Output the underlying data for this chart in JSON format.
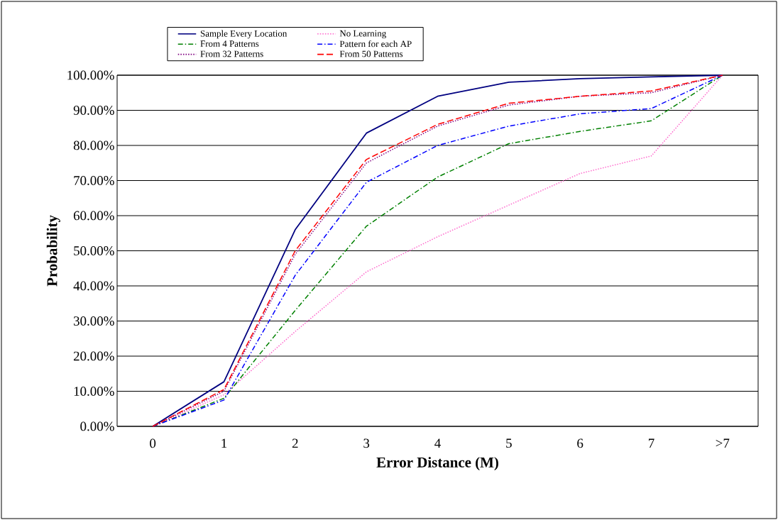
{
  "chart_data": {
    "type": "line",
    "xlabel": "Error Distance (M)",
    "ylabel": "Probability",
    "categories": [
      "0",
      "1",
      "2",
      "3",
      "4",
      "5",
      "6",
      "7",
      ">7"
    ],
    "ylim": [
      0,
      100
    ],
    "yticks": [
      {
        "value": 0,
        "label": "0.00%"
      },
      {
        "value": 10,
        "label": "10.00%"
      },
      {
        "value": 20,
        "label": "20.00%"
      },
      {
        "value": 30,
        "label": "30.00%"
      },
      {
        "value": 40,
        "label": "40.00%"
      },
      {
        "value": 50,
        "label": "50.00%"
      },
      {
        "value": 60,
        "label": "60.00%"
      },
      {
        "value": 70,
        "label": "70.00%"
      },
      {
        "value": 80,
        "label": "80.00%"
      },
      {
        "value": 90,
        "label": "90.00%"
      },
      {
        "value": 100,
        "label": "100.00%"
      }
    ],
    "grid": "y",
    "legend": "top",
    "marker": "none",
    "series": [
      {
        "name": "Sample Every Location",
        "color": "#000080",
        "line_style": "solid",
        "values": [
          0,
          12.7,
          56,
          83.5,
          94,
          98,
          99,
          99.5,
          100
        ]
      },
      {
        "name": "No Learning",
        "color": "#ff66cc",
        "line_style": "dotted",
        "values": [
          0,
          9,
          27,
          44,
          54,
          63,
          72,
          77,
          100
        ]
      },
      {
        "name": "From 4 Patterns",
        "color": "#008000",
        "line_style": "dashdot",
        "values": [
          0,
          8,
          33,
          57,
          71,
          80.5,
          84,
          87,
          100
        ]
      },
      {
        "name": "Pattern for each AP",
        "color": "#0000ff",
        "line_style": "dashdot",
        "values": [
          0,
          7.5,
          43,
          69.5,
          80,
          85.5,
          89,
          90.5,
          100
        ]
      },
      {
        "name": "From 32 Patterns",
        "color": "#800080",
        "line_style": "dotted",
        "values": [
          0,
          10,
          49,
          75,
          85.5,
          91.5,
          94,
          95,
          100
        ]
      },
      {
        "name": "From 50 Patterns",
        "color": "#ff0000",
        "line_style": "dashed",
        "values": [
          0,
          10.5,
          50,
          76,
          86,
          92,
          94,
          95.5,
          100
        ]
      }
    ]
  }
}
